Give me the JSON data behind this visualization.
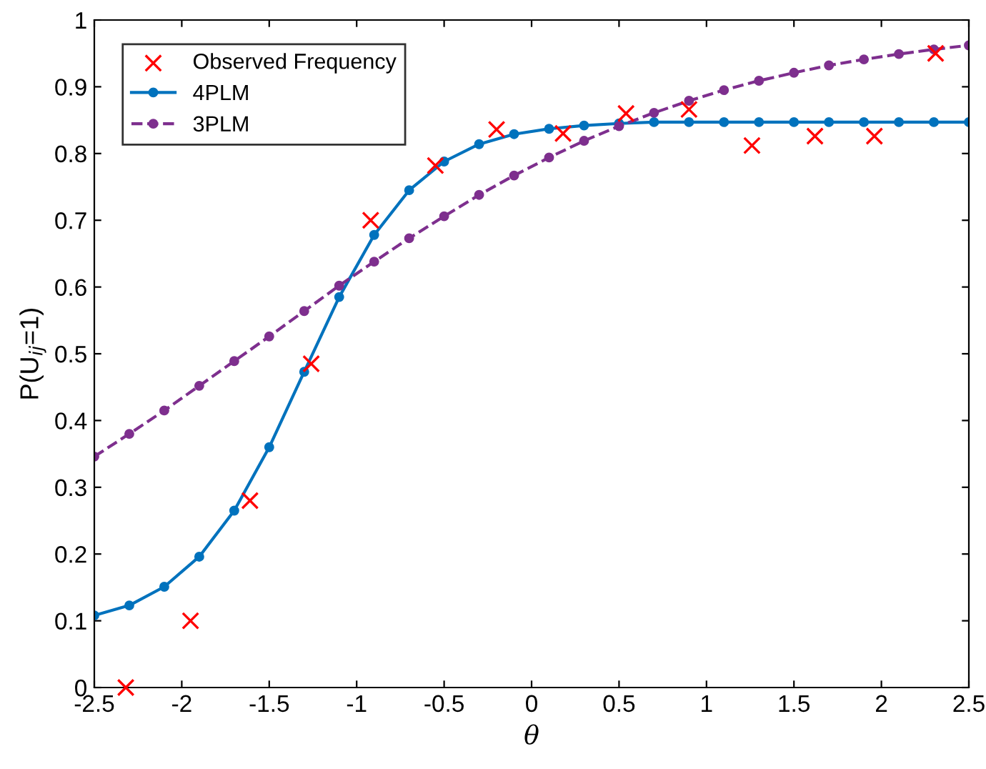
{
  "chart_data": {
    "type": "line",
    "xlabel": "θ",
    "ylabel": "P(U$_{ij}$=1)",
    "xlim": [
      -2.5,
      2.5
    ],
    "xticks": [
      -2.5,
      -2,
      -1.5,
      -1,
      -0.5,
      0,
      0.5,
      1,
      1.5,
      2,
      2.5
    ],
    "ylim": [
      0,
      1
    ],
    "yticks": [
      0,
      0.1,
      0.2,
      0.3,
      0.4,
      0.5,
      0.6,
      0.7,
      0.8,
      0.9,
      1
    ],
    "grid": false,
    "legend": "top left",
    "series": [
      {
        "name": "Observed Frequency",
        "type": "scatter",
        "marker": "cross",
        "color": "#ff0000",
        "x": [
          -2.32,
          -1.95,
          -1.61,
          -1.26,
          -0.92,
          -0.55,
          -0.2,
          0.18,
          0.54,
          0.9,
          1.26,
          1.62,
          1.96,
          2.31
        ],
        "values": [
          0.0,
          0.1,
          0.28,
          0.485,
          0.7,
          0.782,
          0.836,
          0.83,
          0.86,
          0.866,
          0.812,
          0.826,
          0.826,
          0.95
        ]
      },
      {
        "name": "4PLM",
        "marker": "circle",
        "line_style": "solid",
        "color": "#0072bd",
        "x": [
          -2.5,
          -2.3,
          -2.1,
          -1.9,
          -1.7,
          -1.5,
          -1.3,
          -1.1,
          -0.9,
          -0.7,
          -0.5,
          -0.3,
          -0.1,
          0.1,
          0.3,
          0.5,
          0.7,
          0.9,
          1.1,
          1.3,
          1.5,
          1.7,
          1.9,
          2.1,
          2.3,
          2.5
        ],
        "values": [
          0.108,
          0.123,
          0.151,
          0.196,
          0.265,
          0.36,
          0.473,
          0.585,
          0.678,
          0.745,
          0.788,
          0.814,
          0.829,
          0.837,
          0.842,
          0.845,
          0.847,
          0.847,
          0.847,
          0.847,
          0.847,
          0.847,
          0.847,
          0.847,
          0.847,
          0.847
        ]
      },
      {
        "name": "3PLM",
        "marker": "circle",
        "line_style": "dashed",
        "color": "#7e2f8e",
        "x": [
          -2.5,
          -2.3,
          -2.1,
          -1.9,
          -1.7,
          -1.5,
          -1.3,
          -1.1,
          -0.9,
          -0.7,
          -0.5,
          -0.3,
          -0.1,
          0.1,
          0.3,
          0.5,
          0.7,
          0.9,
          1.1,
          1.3,
          1.5,
          1.7,
          1.9,
          2.1,
          2.3,
          2.5
        ],
        "values": [
          0.346,
          0.38,
          0.415,
          0.452,
          0.489,
          0.526,
          0.564,
          0.602,
          0.638,
          0.673,
          0.706,
          0.738,
          0.767,
          0.794,
          0.819,
          0.841,
          0.861,
          0.879,
          0.895,
          0.909,
          0.921,
          0.932,
          0.941,
          0.949,
          0.956,
          0.962
        ]
      }
    ]
  }
}
